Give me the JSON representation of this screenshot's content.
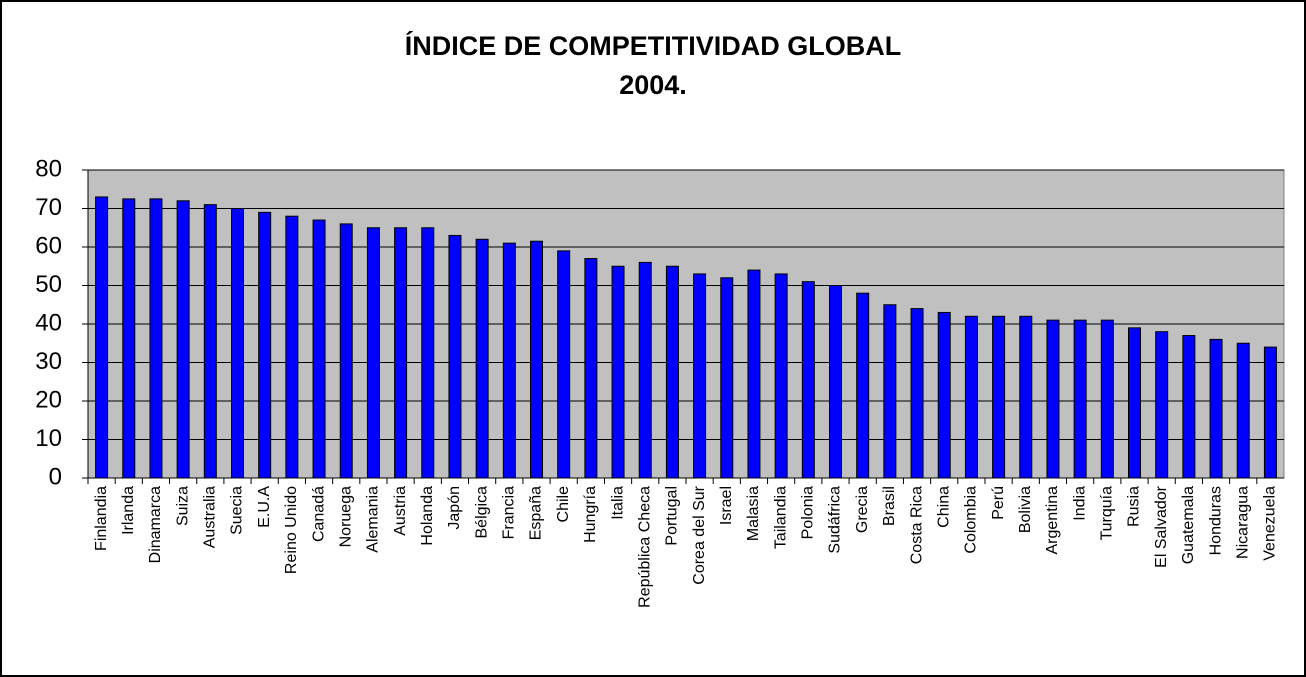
{
  "chart_data": {
    "type": "bar",
    "title": "ÍNDICE DE COMPETITIVIDAD GLOBAL",
    "subtitle": "2004.",
    "categories": [
      "Finlandia",
      "Irlanda",
      "Dinamarca",
      "Suiza",
      "Australia",
      "Suecia",
      "E.U.A",
      "Reino Unido",
      "Canadá",
      "Noruega",
      "Alemania",
      "Austria",
      "Holanda",
      "Japón",
      "Bélgica",
      "Francia",
      "España",
      "Chile",
      "Hungría",
      "Italia",
      "República Checa",
      "Portugal",
      "Corea del Sur",
      "Israel",
      "Malasia",
      "Tailandia",
      "Polonia",
      "Sudáfrica",
      "Grecia",
      "Brasil",
      "Costa Rica",
      "China",
      "Colombia",
      "Perú",
      "Bolivia",
      "Argentina",
      "India",
      "Turquía",
      "Rusia",
      "El Salvador",
      "Guatemala",
      "Honduras",
      "Nicaragua",
      "Venezuela"
    ],
    "values": [
      73,
      72.5,
      72.5,
      72,
      71,
      70,
      69,
      68,
      67,
      66,
      65,
      65,
      65,
      63,
      62,
      61,
      61.5,
      59,
      57,
      55,
      56,
      55,
      53,
      52,
      54,
      53,
      51,
      50,
      48,
      45,
      44,
      43,
      42,
      42,
      42,
      41,
      41,
      41,
      39,
      38,
      37,
      36,
      35,
      34
    ],
    "color": "#0000ff",
    "plot_background": "#c0c0c0",
    "ylim": [
      0,
      80
    ],
    "yticks": [
      0,
      10,
      20,
      30,
      40,
      50,
      60,
      70,
      80
    ],
    "grid": true
  }
}
